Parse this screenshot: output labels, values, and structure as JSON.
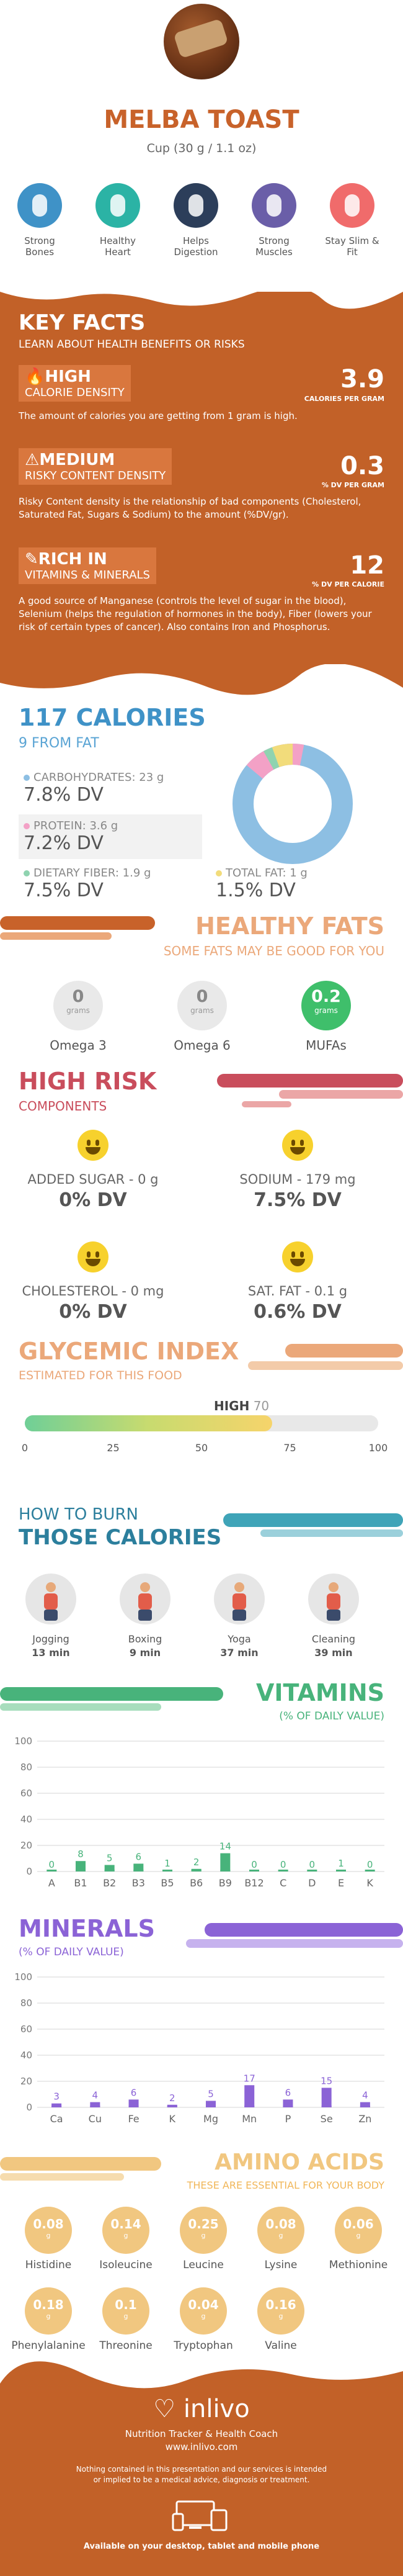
{
  "header": {
    "food_name": "MELBA TOAST",
    "serving": "Cup (30 g / 1.1 oz)",
    "benefits": [
      {
        "label": "Strong Bones",
        "icon": "bone-icon",
        "color": "#3f92c7"
      },
      {
        "label": "Healthy Heart",
        "icon": "heart-icon",
        "color": "#2bb3a5"
      },
      {
        "label": "Helps Digestion",
        "icon": "stomach-icon",
        "color": "#2c3e5a"
      },
      {
        "label": "Strong Muscles",
        "icon": "muscle-icon",
        "color": "#6a5ea8"
      },
      {
        "label": "Stay Slim & Fit",
        "icon": "slim-icon",
        "color": "#f06b6b"
      }
    ]
  },
  "key_facts": {
    "title": "KEY FACTS",
    "subtitle": "LEARN ABOUT HEALTH BENEFITS OR RISKS",
    "calorie": {
      "level": "HIGH",
      "label": "CALORIE DENSITY",
      "value": "3.9",
      "unit": "CALORIES PER GRAM",
      "desc": "The amount of calories you are getting from 1 gram is high."
    },
    "risky": {
      "level": "MEDIUM",
      "label": "RISKY CONTENT DENSITY",
      "value": "0.3",
      "unit": "% DV PER GRAM",
      "desc": "Risky Content density is the relationship of bad components (Cholesterol, Saturated Fat, Sugars & Sodium) to the amount (%DV/gr)."
    },
    "rich": {
      "level": "RICH IN",
      "label": "VITAMINS & MINERALS",
      "value": "12",
      "unit": "% DV PER CALORIE",
      "desc": "A good source of Manganese (controls the level of sugar in the blood), Selenium (helps the regulation of hormones in the body), Fiber (lowers your risk of certain types of cancer). Also contains Iron and Phosphorus."
    }
  },
  "calories": {
    "title": "117 CALORIES",
    "from_fat": "9 FROM FAT",
    "carbs": {
      "label": "CARBOHYDRATES: 23 g",
      "dv": "7.8% DV",
      "color": "#8dbfe3"
    },
    "protein": {
      "label": "PROTEIN: 3.6 g",
      "dv": "7.2% DV",
      "color": "#f3a1c6"
    },
    "fiber": {
      "label": "DIETARY FIBER: 1.9 g",
      "dv": "7.5% DV",
      "color": "#8fd3b0"
    },
    "fat": {
      "label": "TOTAL FAT: 1 g",
      "dv": "1.5% DV",
      "color": "#f2dc7b"
    }
  },
  "healthy_fats": {
    "title": "HEALTHY FATS",
    "subtitle": "SOME FATS MAY BE GOOD FOR YOU",
    "items": [
      {
        "value": "0",
        "unit": "grams",
        "name": "Omega 3"
      },
      {
        "value": "0",
        "unit": "grams",
        "name": "Omega 6"
      },
      {
        "value": "0.2",
        "unit": "grams",
        "name": "MUFAs"
      }
    ]
  },
  "high_risk": {
    "title": "HIGH RISK",
    "subtitle": "COMPONENTS",
    "items": [
      {
        "label": "ADDED SUGAR - 0 g",
        "dv": "0% DV"
      },
      {
        "label": "SODIUM - 179 mg",
        "dv": "7.5% DV"
      },
      {
        "label": "CHOLESTEROL - 0 mg",
        "dv": "0% DV"
      },
      {
        "label": "SAT. FAT - 0.1 g",
        "dv": "0.6% DV"
      }
    ]
  },
  "glycemic": {
    "title": "GLYCEMIC INDEX",
    "subtitle": "ESTIMATED FOR THIS FOOD",
    "level": "HIGH",
    "value": 70,
    "ticks": [
      "0",
      "25",
      "50",
      "75",
      "100"
    ]
  },
  "burn": {
    "title1": "HOW TO BURN",
    "title2": "THOSE CALORIES",
    "items": [
      {
        "name": "Jogging",
        "time": "13 min",
        "icon": "jogging-icon"
      },
      {
        "name": "Boxing",
        "time": "9 min",
        "icon": "boxing-icon"
      },
      {
        "name": "Yoga",
        "time": "37 min",
        "icon": "yoga-icon"
      },
      {
        "name": "Cleaning",
        "time": "39 min",
        "icon": "cleaning-icon"
      }
    ]
  },
  "chart_data": [
    {
      "type": "bar",
      "title": "VITAMINS",
      "subtitle": "(% OF DAILY VALUE)",
      "categories": [
        "A",
        "B1",
        "B2",
        "B3",
        "B5",
        "B6",
        "B9",
        "B12",
        "C",
        "D",
        "E",
        "K"
      ],
      "values": [
        0,
        8,
        5,
        6,
        1,
        2,
        14,
        0,
        0,
        0,
        1,
        0
      ],
      "yticks": [
        "0",
        "20",
        "40",
        "60",
        "80",
        "100"
      ],
      "ylim": [
        0,
        100
      ],
      "color": "#48b37b"
    },
    {
      "type": "bar",
      "title": "MINERALS",
      "subtitle": "(% OF DAILY VALUE)",
      "categories": [
        "Ca",
        "Cu",
        "Fe",
        "K",
        "Mg",
        "Mn",
        "P",
        "Se",
        "Zn"
      ],
      "values": [
        3,
        4,
        6,
        2,
        5,
        17,
        6,
        15,
        4
      ],
      "yticks": [
        "0",
        "20",
        "40",
        "60",
        "80",
        "100"
      ],
      "ylim": [
        0,
        100
      ],
      "color": "#8b63d6"
    }
  ],
  "amino": {
    "title": "AMINO ACIDS",
    "subtitle": "THESE ARE ESSENTIAL FOR YOUR BODY",
    "unit": "g",
    "items": [
      {
        "name": "Histidine",
        "value": "0.08"
      },
      {
        "name": "Isoleucine",
        "value": "0.14"
      },
      {
        "name": "Leucine",
        "value": "0.25"
      },
      {
        "name": "Lysine",
        "value": "0.08"
      },
      {
        "name": "Methionine",
        "value": "0.06"
      },
      {
        "name": "Phenylalanine",
        "value": "0.18"
      },
      {
        "name": "Threonine",
        "value": "0.1"
      },
      {
        "name": "Tryptophan",
        "value": "0.04"
      },
      {
        "name": "Valine",
        "value": "0.16"
      }
    ]
  },
  "footer": {
    "brand": "inlivo",
    "tagline": "Nutrition Tracker & Health Coach",
    "url": "www.inlivo.com",
    "disclaimer": "Nothing contained in this presentation and our services is intended or implied to be a medical advice, diagnosis or treatment.",
    "available": "Available on your desktop, tablet and mobile phone"
  }
}
